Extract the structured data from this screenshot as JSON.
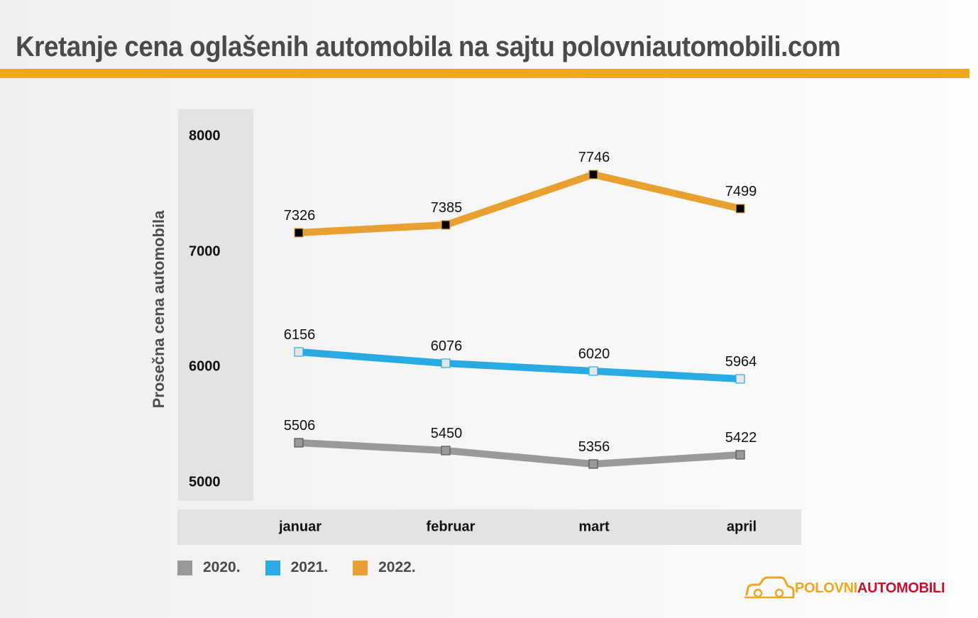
{
  "header": {
    "title": "Kretanje cena oglašenih automobila na sajtu polovniautomobili.com"
  },
  "colors": {
    "accent": "#efa71f",
    "series_2020": "#999999",
    "series_2021": "#2aaae2",
    "series_2022": "#e8a030",
    "marker_2022": "#000000",
    "marker_2021": "#e6e6e6",
    "marker_2020": "#999999",
    "logo_red": "#c8102e"
  },
  "chart_data": {
    "type": "line",
    "title": "Kretanje cena oglašenih automobila na sajtu polovniautomobili.com",
    "xlabel": "",
    "ylabel": "Prosečna cena automobila",
    "categories": [
      "januar",
      "februar",
      "mart",
      "april"
    ],
    "y_ticks": [
      "8000",
      "7000",
      "6000",
      "5000"
    ],
    "ylim": [
      5000,
      8000
    ],
    "grid": false,
    "legend_position": "bottom-left",
    "series": [
      {
        "name": "2020.",
        "values": [
          5506,
          5450,
          5356,
          5422
        ]
      },
      {
        "name": "2021.",
        "values": [
          6156,
          6076,
          6020,
          5964
        ]
      },
      {
        "name": "2022.",
        "values": [
          7326,
          7385,
          7746,
          7499
        ]
      }
    ]
  },
  "logo": {
    "part1": "POLOVNI",
    "part2": "AUTOMOBILI",
    "icon": "car-outline-icon"
  }
}
